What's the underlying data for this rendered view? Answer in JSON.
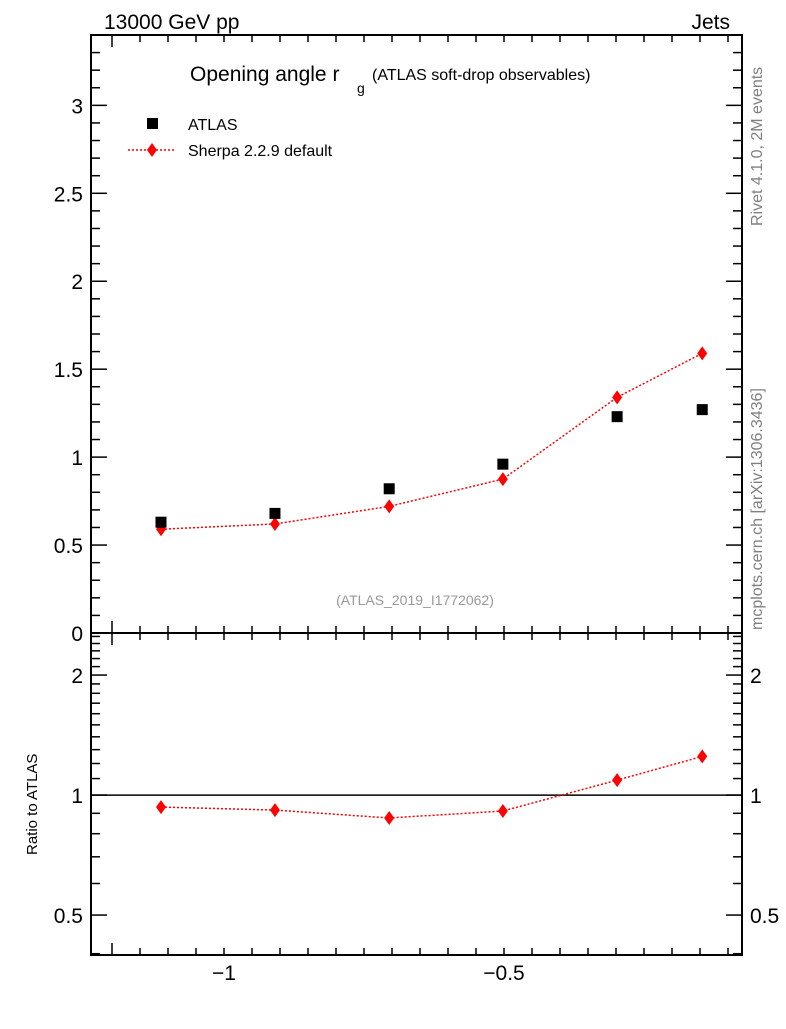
{
  "header": {
    "left": "13000 GeV pp",
    "right": "Jets"
  },
  "side_labels": {
    "top": "Rivet 4.1.0,  2M events",
    "bottom": "mcplots.cern.ch [arXiv:1306.3436]"
  },
  "chart_data": [
    {
      "type": "scatter",
      "title": "Opening angle r",
      "title_sub": "g",
      "title_suffix": "(ATLAS soft-drop observables)",
      "analysis_label": "(ATLAS_2019_I1772062)",
      "xlim": [
        -1.2375,
        -0.075
      ],
      "ylim": [
        0,
        3.4
      ],
      "yticks": [
        0,
        0.5,
        1,
        1.5,
        2,
        2.5,
        3
      ],
      "ytick_labels": [
        "0",
        "0.5",
        "1",
        "1.5",
        "2",
        "2.5",
        "3"
      ],
      "legend": {
        "placement": "top-left",
        "entries": [
          "ATLAS",
          "Sherpa 2.2.9 default"
        ]
      },
      "series": [
        {
          "name": "ATLAS",
          "color": "#000000",
          "marker": "square",
          "x": [
            -1.1125,
            -0.909,
            -0.705,
            -0.502,
            -0.298,
            -0.146
          ],
          "y": [
            0.63,
            0.68,
            0.82,
            0.96,
            1.23,
            1.27
          ]
        },
        {
          "name": "Sherpa 2.2.9 default",
          "color": "#ff0000",
          "marker": "diamond",
          "x": [
            -1.1125,
            -0.909,
            -0.705,
            -0.502,
            -0.298,
            -0.146
          ],
          "y": [
            0.59,
            0.62,
            0.72,
            0.875,
            1.34,
            1.59
          ]
        }
      ]
    },
    {
      "type": "line",
      "ylabel": "Ratio to ATLAS",
      "yscale": "log",
      "xlim": [
        -1.2375,
        -0.075
      ],
      "ylim": [
        0.397,
        2.55
      ],
      "yticks": [
        0.5,
        1,
        2
      ],
      "ytick_labels": [
        "0.5",
        "1",
        "2"
      ],
      "xticks": [
        -1,
        -0.5
      ],
      "xtick_labels": [
        "−1",
        "−0.5"
      ],
      "reference_line": 1,
      "series": [
        {
          "name": "Sherpa 2.2.9 default",
          "color": "#ff0000",
          "marker": "diamond",
          "x": [
            -1.1125,
            -0.909,
            -0.705,
            -0.502,
            -0.298,
            -0.146
          ],
          "y": [
            0.933,
            0.917,
            0.876,
            0.912,
            1.09,
            1.25
          ]
        }
      ]
    }
  ]
}
